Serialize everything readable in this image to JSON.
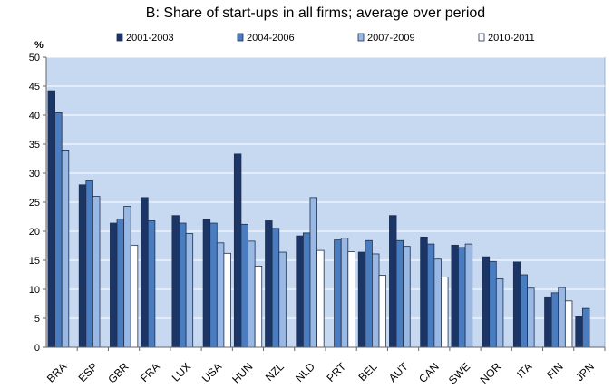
{
  "chart_data": {
    "type": "bar",
    "title": "B: Share of start-ups in all firms; average over period",
    "ylabel": "%",
    "xlabel": "",
    "ylim": [
      0,
      50
    ],
    "yticks": [
      0,
      5,
      10,
      15,
      20,
      25,
      30,
      35,
      40,
      45,
      50
    ],
    "grid": true,
    "legend_position": "top",
    "categories": [
      "BRA",
      "ESP",
      "GBR",
      "FRA",
      "LUX",
      "USA",
      "HUN",
      "NZL",
      "NLD",
      "PRT",
      "BEL",
      "AUT",
      "CAN",
      "SWE",
      "NOR",
      "ITA",
      "FIN",
      "JPN"
    ],
    "series": [
      {
        "name": "2001-2003",
        "color": "#1b3566",
        "values": [
          44.2,
          28.0,
          21.4,
          25.8,
          22.7,
          22.0,
          33.3,
          21.8,
          19.2,
          null,
          16.4,
          22.7,
          19.0,
          17.6,
          15.6,
          14.7,
          8.7,
          5.3
        ]
      },
      {
        "name": "2004-2006",
        "color": "#4a7dc0",
        "values": [
          40.4,
          28.7,
          22.1,
          21.8,
          21.4,
          21.4,
          21.2,
          20.5,
          19.7,
          18.5,
          18.4,
          18.4,
          17.8,
          17.2,
          14.8,
          12.5,
          9.4,
          6.7
        ]
      },
      {
        "name": "2007-2009",
        "color": "#9ab8e4",
        "values": [
          34.0,
          26.0,
          24.3,
          null,
          19.6,
          18.0,
          18.3,
          16.4,
          25.8,
          18.8,
          16.1,
          17.4,
          15.2,
          17.8,
          11.8,
          10.2,
          10.3,
          null
        ]
      },
      {
        "name": "2010-2011",
        "color": "#ffffff",
        "values": [
          null,
          null,
          17.6,
          null,
          null,
          16.2,
          14.0,
          null,
          16.7,
          16.5,
          12.4,
          null,
          12.1,
          null,
          null,
          null,
          8.0,
          null
        ]
      }
    ]
  }
}
